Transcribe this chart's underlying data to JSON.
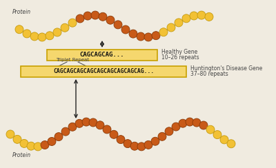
{
  "background_color": "#f0ebe0",
  "yellow_color": "#f2c135",
  "yellow_edge": "#c49a10",
  "orange_color": "#c85a18",
  "orange_edge": "#8b3a08",
  "box_fill": "#f5d76e",
  "box_edge": "#c8a000",
  "text_color": "#444444",
  "healthy_gene_text": "CAGCAGCAG...",
  "huntington_gene_text": "CAGCAGCAGCAGCAGCAGCAGCAGCAG...",
  "healthy_label_line1": "Healthy Gene",
  "healthy_label_line2": "10–26 repeats",
  "huntington_label_line1": "Huntington's Disease Gene",
  "huntington_label_line2": "37–80 repeats",
  "triplet_label": "Triplet Repeat",
  "protein_label": "Protein",
  "arrow_color": "#222222"
}
